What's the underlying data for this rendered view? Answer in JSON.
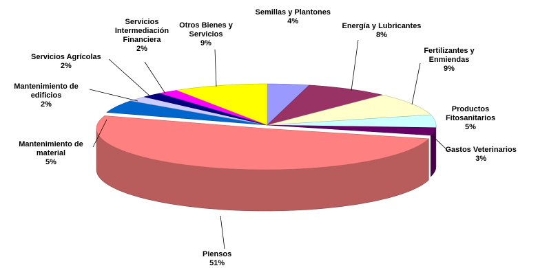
{
  "chart_data": {
    "type": "pie",
    "title": "",
    "style": "3d-exploded",
    "slices": [
      {
        "label": "Semillas y Plantones",
        "value": 4,
        "pct_label": "4%",
        "color": "#9999ff"
      },
      {
        "label": "Energía y Lubricantes",
        "value": 8,
        "pct_label": "8%",
        "color": "#993366"
      },
      {
        "label": "Fertilizantes y Enmiendas",
        "value": 9,
        "pct_label": "9%",
        "color": "#ffffcc"
      },
      {
        "label": "Productos Fitosanitarios",
        "value": 5,
        "pct_label": "5%",
        "color": "#ccffff"
      },
      {
        "label": "Gastos Veterinarios",
        "value": 3,
        "pct_label": "3%",
        "color": "#660066"
      },
      {
        "label": "Piensos",
        "value": 51,
        "pct_label": "51%",
        "color": "#ff8080"
      },
      {
        "label": "Mantenimiento de material",
        "value": 5,
        "pct_label": "5%",
        "color": "#0066cc"
      },
      {
        "label": "Mantenimiento de edificios",
        "value": 2,
        "pct_label": "2%",
        "color": "#ccccff"
      },
      {
        "label": "Servicios Agrícolas",
        "value": 2,
        "pct_label": "2%",
        "color": "#000080"
      },
      {
        "label": "Servicios Intermediación Financiera",
        "value": 2,
        "pct_label": "2%",
        "color": "#ff00ff"
      },
      {
        "label": "Otros Bienes y Servicios",
        "value": 9,
        "pct_label": "9%",
        "color": "#ffff00"
      }
    ]
  }
}
